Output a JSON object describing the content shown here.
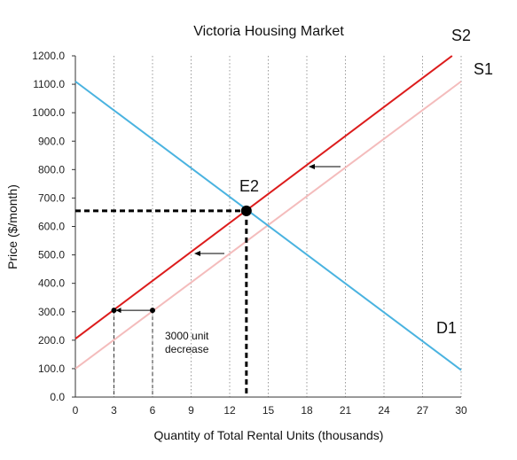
{
  "chart_data": {
    "type": "line",
    "title": "Victoria Housing Market",
    "xlabel": "Quantity of Total Rental Units (thousands)",
    "ylabel": "Price ($/month)",
    "xlim": [
      0,
      30
    ],
    "ylim": [
      0,
      1200
    ],
    "x_ticks": [
      "0",
      "3",
      "6",
      "9",
      "12",
      "15",
      "18",
      "21",
      "24",
      "27",
      "30"
    ],
    "y_ticks": [
      "0.0",
      "100.0",
      "200.0",
      "300.0",
      "400.0",
      "500.0",
      "600.0",
      "700.0",
      "800.0",
      "900.0",
      "1000.0",
      "1100.0",
      "1200.0"
    ],
    "grid": "vertical dotted",
    "series": [
      {
        "name": "D1",
        "color": "#4ab3e0",
        "points": [
          [
            0,
            1110
          ],
          [
            30,
            95
          ]
        ]
      },
      {
        "name": "S1",
        "color": "#f4bcbc",
        "points": [
          [
            0,
            100
          ],
          [
            30,
            1110
          ]
        ]
      },
      {
        "name": "S2",
        "color": "#dc1c1c",
        "points": [
          [
            0,
            205
          ],
          [
            29.3,
            1200
          ]
        ]
      }
    ],
    "labels": {
      "S2": "S2",
      "S1": "S1",
      "D1": "D1",
      "E2": "E2"
    },
    "equilibrium": {
      "label": "E2",
      "x": 13.3,
      "y": 655
    },
    "shift_points": [
      {
        "x": 3,
        "y": 305
      },
      {
        "x": 6,
        "y": 305
      }
    ],
    "annotation": {
      "line1": "3000 unit",
      "line2": "decrease"
    }
  }
}
